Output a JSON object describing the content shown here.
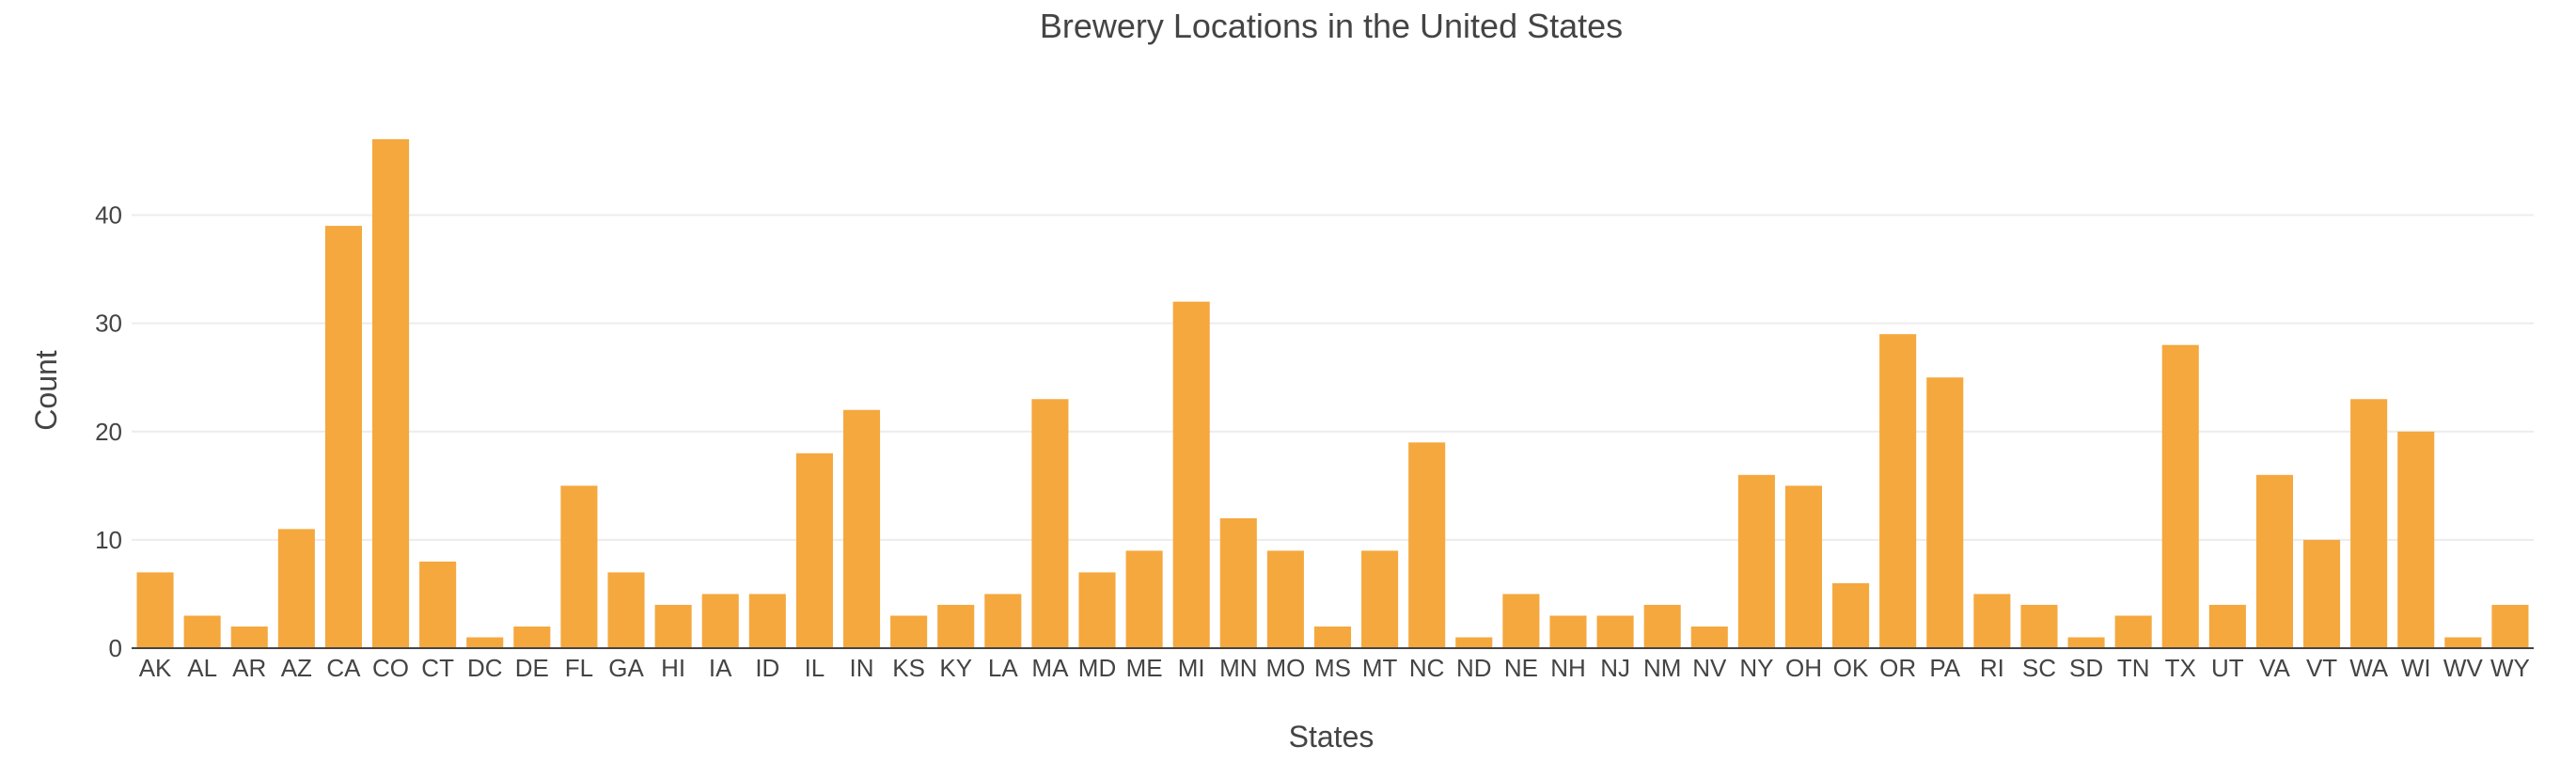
{
  "chart_data": {
    "type": "bar",
    "title": "Brewery Locations in the United States",
    "xlabel": "States",
    "ylabel": "Count",
    "ylim": [
      0,
      47
    ],
    "yticks": [
      0,
      10,
      20,
      30,
      40
    ],
    "grid": true,
    "bar_color": "#f5a83e",
    "categories": [
      "AK",
      "AL",
      "AR",
      "AZ",
      "CA",
      "CO",
      "CT",
      "DC",
      "DE",
      "FL",
      "GA",
      "HI",
      "IA",
      "ID",
      "IL",
      "IN",
      "KS",
      "KY",
      "LA",
      "MA",
      "MD",
      "ME",
      "MI",
      "MN",
      "MO",
      "MS",
      "MT",
      "NC",
      "ND",
      "NE",
      "NH",
      "NJ",
      "NM",
      "NV",
      "NY",
      "OH",
      "OK",
      "OR",
      "PA",
      "RI",
      "SC",
      "SD",
      "TN",
      "TX",
      "UT",
      "VA",
      "VT",
      "WA",
      "WI",
      "WV",
      "WY"
    ],
    "values": [
      7,
      3,
      2,
      11,
      39,
      47,
      8,
      1,
      2,
      15,
      7,
      4,
      5,
      5,
      18,
      22,
      3,
      4,
      5,
      23,
      7,
      9,
      32,
      12,
      9,
      2,
      9,
      19,
      1,
      5,
      3,
      3,
      4,
      2,
      16,
      15,
      6,
      29,
      25,
      5,
      4,
      1,
      3,
      28,
      4,
      16,
      10,
      23,
      20,
      1,
      4
    ]
  }
}
